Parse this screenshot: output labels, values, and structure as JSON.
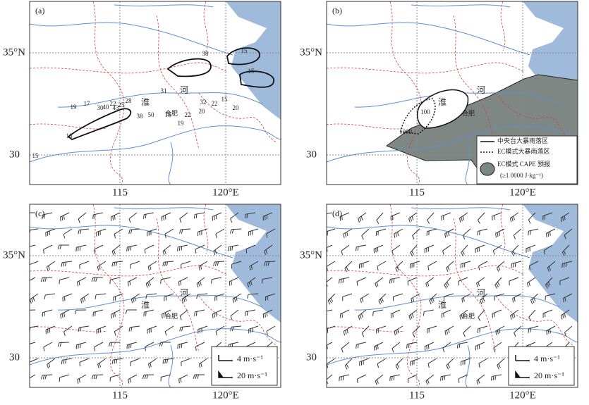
{
  "panels": [
    {
      "label": "(a)"
    },
    {
      "label": "(b)"
    },
    {
      "label": "(c)"
    },
    {
      "label": "(d)"
    }
  ],
  "axes": {
    "y_labels": [
      "35°N",
      "30"
    ],
    "x_labels": [
      "115",
      "120°E"
    ]
  },
  "place_labels": [
    "河",
    "淮",
    "合肥"
  ],
  "panel_a": {
    "contour_labels": [
      "15",
      "38",
      "15",
      "31",
      "19",
      "17",
      "30",
      "22",
      "28",
      "40",
      "43",
      "25",
      "38",
      "50",
      "32",
      "22",
      "20",
      "20",
      "16",
      "19",
      "22",
      "16",
      "15",
      "15"
    ]
  },
  "panel_b": {
    "contour_labels": [
      "100",
      "1000"
    ],
    "legend": [
      "中央台大暴雨落区",
      "EC模式大暴雨落区",
      "EC模式 CAPE 预报",
      "(≥1 0000 J·kg⁻¹)"
    ]
  },
  "wind_legend": [
    "4 m·s⁻¹",
    "20 m·s⁻¹"
  ]
}
